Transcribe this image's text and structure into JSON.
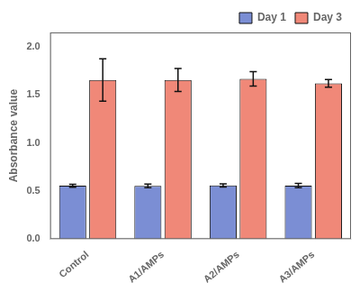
{
  "chart_data": {
    "type": "bar",
    "categories": [
      "Control",
      "A1/AMPs",
      "A2/AMPs",
      "A3/AMPs"
    ],
    "series": [
      {
        "name": "Day 1",
        "color": "#7b8ed4",
        "values": [
          0.555,
          0.553,
          0.558,
          0.556
        ],
        "errors": [
          0.015,
          0.018,
          0.016,
          0.022
        ]
      },
      {
        "name": "Day 3",
        "color": "#f08878",
        "values": [
          1.655,
          1.655,
          1.668,
          1.62
        ],
        "errors": [
          0.22,
          0.12,
          0.075,
          0.04
        ]
      }
    ],
    "ylabel": "Absorbance value",
    "ylim": [
      0.0,
      2.15
    ],
    "yticks": [
      {
        "value": 0,
        "label": "0.0"
      },
      0.5,
      {
        "value": 1,
        "label": "1.0"
      },
      1.5,
      {
        "value": 2,
        "label": "2.0"
      }
    ],
    "grid": false,
    "legend": "upper right"
  }
}
